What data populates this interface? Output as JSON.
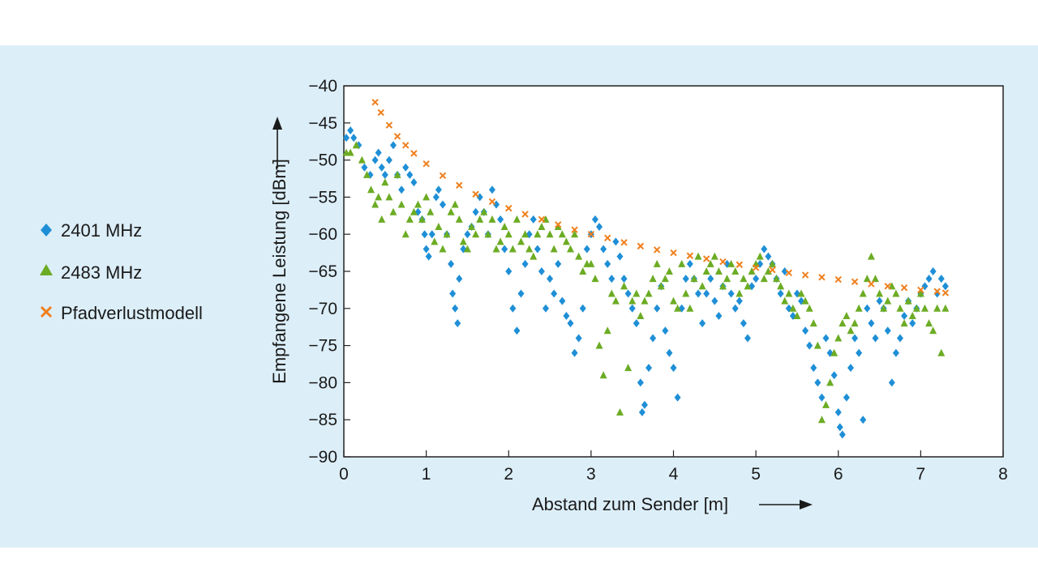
{
  "colors": {
    "background": "#dceef8",
    "plot_background": "#ffffff",
    "series_2401": "#1e8fd6",
    "series_2483": "#6cac24",
    "series_model": "#f07f1c",
    "axis": "#222222"
  },
  "chart_data": {
    "type": "scatter",
    "title": "",
    "xlabel": "Abstand zum Sender [m]",
    "ylabel": "Empfangene Leistung [dBm]",
    "xlim": [
      0,
      8
    ],
    "ylim": [
      -90,
      -40
    ],
    "x_ticks": [
      0,
      1,
      2,
      3,
      4,
      5,
      6,
      7,
      8
    ],
    "x_tick_labels": [
      "0",
      "1",
      "2",
      "3",
      "4",
      "5",
      "6",
      "7",
      "8"
    ],
    "y_ticks": [
      -40,
      -45,
      -50,
      -55,
      -60,
      -65,
      -70,
      -75,
      -80,
      -85,
      -90
    ],
    "y_tick_labels": [
      "−40",
      "−45",
      "−50",
      "−55",
      "−60",
      "−65",
      "−70",
      "−75",
      "−80",
      "−85",
      "−90"
    ],
    "grid": false,
    "legend_position": "left",
    "series": [
      {
        "name": "2401 MHz",
        "marker": "diamond",
        "color": "#1e8fd6",
        "x": [
          0.03,
          0.08,
          0.12,
          0.18,
          0.25,
          0.32,
          0.38,
          0.42,
          0.46,
          0.5,
          0.55,
          0.6,
          0.65,
          0.7,
          0.75,
          0.8,
          0.85,
          0.9,
          0.95,
          0.98,
          1.0,
          1.03,
          1.07,
          1.12,
          1.15,
          1.2,
          1.25,
          1.3,
          1.32,
          1.35,
          1.38,
          1.4,
          1.45,
          1.5,
          1.55,
          1.6,
          1.65,
          1.7,
          1.75,
          1.8,
          1.85,
          1.9,
          1.95,
          2.0,
          2.05,
          2.1,
          2.15,
          2.2,
          2.25,
          2.3,
          2.35,
          2.4,
          2.45,
          2.5,
          2.55,
          2.6,
          2.65,
          2.7,
          2.75,
          2.8,
          2.85,
          2.9,
          2.95,
          3.0,
          3.05,
          3.1,
          3.15,
          3.2,
          3.25,
          3.3,
          3.35,
          3.4,
          3.45,
          3.5,
          3.55,
          3.6,
          3.62,
          3.65,
          3.7,
          3.75,
          3.8,
          3.85,
          3.9,
          3.95,
          4.0,
          4.05,
          4.1,
          4.15,
          4.2,
          4.25,
          4.3,
          4.35,
          4.4,
          4.45,
          4.5,
          4.55,
          4.6,
          4.65,
          4.7,
          4.75,
          4.8,
          4.85,
          4.9,
          4.95,
          5.0,
          5.05,
          5.1,
          5.15,
          5.2,
          5.25,
          5.3,
          5.35,
          5.4,
          5.45,
          5.5,
          5.55,
          5.6,
          5.65,
          5.7,
          5.75,
          5.8,
          5.85,
          5.9,
          5.95,
          6.0,
          6.02,
          6.05,
          6.1,
          6.15,
          6.2,
          6.25,
          6.3,
          6.35,
          6.4,
          6.45,
          6.5,
          6.55,
          6.6,
          6.65,
          6.7,
          6.75,
          6.8,
          6.85,
          6.9,
          6.95,
          7.0,
          7.05,
          7.1,
          7.15,
          7.2,
          7.25,
          7.3
        ],
        "y": [
          -47,
          -46,
          -47,
          -48,
          -51,
          -52,
          -50,
          -49,
          -51,
          -52,
          -50,
          -48,
          -52,
          -54,
          -51,
          -52,
          -53,
          -57,
          -58,
          -60,
          -62,
          -63,
          -60,
          -55,
          -54,
          -56,
          -60,
          -64,
          -68,
          -70,
          -72,
          -66,
          -62,
          -60,
          -59,
          -57,
          -55,
          -57,
          -60,
          -54,
          -56,
          -58,
          -62,
          -65,
          -70,
          -73,
          -68,
          -64,
          -60,
          -58,
          -62,
          -65,
          -70,
          -66,
          -68,
          -64,
          -69,
          -71,
          -72,
          -76,
          -74,
          -70,
          -62,
          -60,
          -58,
          -59,
          -62,
          -64,
          -66,
          -61,
          -63,
          -66,
          -68,
          -70,
          -72,
          -80,
          -84,
          -83,
          -78,
          -74,
          -70,
          -67,
          -73,
          -76,
          -78,
          -82,
          -70,
          -66,
          -64,
          -66,
          -68,
          -72,
          -68,
          -66,
          -69,
          -71,
          -67,
          -64,
          -68,
          -70,
          -69,
          -72,
          -74,
          -67,
          -66,
          -64,
          -62,
          -63,
          -64,
          -66,
          -68,
          -65,
          -70,
          -71,
          -68,
          -69,
          -73,
          -75,
          -78,
          -80,
          -82,
          -74,
          -76,
          -79,
          -84,
          -86,
          -87,
          -82,
          -78,
          -74,
          -76,
          -85,
          -70,
          -72,
          -74,
          -69,
          -70,
          -73,
          -80,
          -76,
          -74,
          -71,
          -69,
          -72,
          -70,
          -68,
          -67,
          -66,
          -65,
          -68,
          -66,
          -67
        ],
        "show_in_legend": true
      },
      {
        "name": "2483 MHz",
        "marker": "triangle",
        "color": "#6cac24",
        "x": [
          0.03,
          0.08,
          0.15,
          0.22,
          0.28,
          0.33,
          0.38,
          0.42,
          0.46,
          0.5,
          0.55,
          0.6,
          0.65,
          0.7,
          0.75,
          0.8,
          0.85,
          0.9,
          0.95,
          1.0,
          1.05,
          1.1,
          1.15,
          1.2,
          1.25,
          1.3,
          1.35,
          1.4,
          1.45,
          1.5,
          1.55,
          1.6,
          1.65,
          1.7,
          1.75,
          1.8,
          1.85,
          1.9,
          1.95,
          2.0,
          2.05,
          2.1,
          2.15,
          2.2,
          2.25,
          2.3,
          2.35,
          2.4,
          2.45,
          2.5,
          2.55,
          2.6,
          2.65,
          2.7,
          2.75,
          2.8,
          2.85,
          2.9,
          2.95,
          3.0,
          3.05,
          3.1,
          3.15,
          3.2,
          3.25,
          3.3,
          3.35,
          3.4,
          3.45,
          3.5,
          3.55,
          3.6,
          3.65,
          3.7,
          3.75,
          3.8,
          3.85,
          3.9,
          3.95,
          4.0,
          4.05,
          4.1,
          4.15,
          4.2,
          4.25,
          4.3,
          4.35,
          4.4,
          4.45,
          4.5,
          4.55,
          4.6,
          4.65,
          4.7,
          4.75,
          4.8,
          4.85,
          4.9,
          4.95,
          5.0,
          5.05,
          5.1,
          5.15,
          5.2,
          5.25,
          5.3,
          5.35,
          5.4,
          5.45,
          5.5,
          5.55,
          5.6,
          5.65,
          5.7,
          5.75,
          5.8,
          5.85,
          5.9,
          5.95,
          6.0,
          6.05,
          6.1,
          6.15,
          6.2,
          6.25,
          6.3,
          6.35,
          6.4,
          6.45,
          6.5,
          6.55,
          6.6,
          6.65,
          6.7,
          6.75,
          6.8,
          6.85,
          6.9,
          6.95,
          7.0,
          7.05,
          7.1,
          7.15,
          7.2,
          7.25,
          7.3
        ],
        "y": [
          -49,
          -49,
          -48,
          -50,
          -52,
          -54,
          -56,
          -55,
          -58,
          -53,
          -55,
          -57,
          -52,
          -56,
          -60,
          -58,
          -57,
          -56,
          -58,
          -55,
          -57,
          -61,
          -59,
          -62,
          -60,
          -57,
          -56,
          -58,
          -61,
          -62,
          -59,
          -60,
          -58,
          -57,
          -60,
          -58,
          -62,
          -61,
          -59,
          -60,
          -62,
          -58,
          -61,
          -60,
          -62,
          -63,
          -60,
          -59,
          -58,
          -60,
          -62,
          -59,
          -60,
          -61,
          -62,
          -60,
          -63,
          -65,
          -64,
          -64,
          -66,
          -75,
          -79,
          -73,
          -68,
          -69,
          -84,
          -67,
          -78,
          -69,
          -68,
          -71,
          -69,
          -68,
          -66,
          -64,
          -67,
          -66,
          -65,
          -69,
          -70,
          -64,
          -68,
          -70,
          -66,
          -63,
          -67,
          -65,
          -64,
          -63,
          -65,
          -67,
          -66,
          -64,
          -65,
          -68,
          -66,
          -67,
          -65,
          -64,
          -63,
          -66,
          -65,
          -64,
          -66,
          -67,
          -69,
          -68,
          -70,
          -71,
          -68,
          -69,
          -70,
          -72,
          -75,
          -85,
          -83,
          -80,
          -76,
          -74,
          -72,
          -71,
          -73,
          -72,
          -70,
          -68,
          -66,
          -63,
          -66,
          -68,
          -70,
          -69,
          -67,
          -68,
          -70,
          -72,
          -69,
          -71,
          -70,
          -68,
          -70,
          -72,
          -73,
          -70,
          -76,
          -70
        ],
        "show_in_legend": true
      },
      {
        "name": "Pfadverlustmodell",
        "marker": "cross",
        "color": "#f07f1c",
        "model": "log-distance",
        "x": [
          0.38,
          0.45,
          0.55,
          0.65,
          0.75,
          0.85,
          1.0,
          1.2,
          1.4,
          1.6,
          1.8,
          2.0,
          2.2,
          2.4,
          2.6,
          2.8,
          3.0,
          3.2,
          3.4,
          3.6,
          3.8,
          4.0,
          4.2,
          4.4,
          4.6,
          4.8,
          5.0,
          5.2,
          5.4,
          5.6,
          5.8,
          6.0,
          6.2,
          6.4,
          6.6,
          6.8,
          7.0,
          7.2,
          7.3
        ],
        "y": [
          -42.2,
          -43.6,
          -45.3,
          -46.8,
          -48.0,
          -49.1,
          -50.5,
          -52.1,
          -53.4,
          -54.6,
          -55.6,
          -56.5,
          -57.3,
          -58.0,
          -58.7,
          -59.4,
          -60.0,
          -60.5,
          -61.1,
          -61.6,
          -62.1,
          -62.5,
          -62.9,
          -63.3,
          -63.7,
          -64.1,
          -64.5,
          -64.8,
          -65.2,
          -65.5,
          -65.8,
          -66.1,
          -66.4,
          -66.7,
          -67.0,
          -67.2,
          -67.5,
          -67.7,
          -67.9
        ],
        "show_in_legend": true
      }
    ]
  }
}
